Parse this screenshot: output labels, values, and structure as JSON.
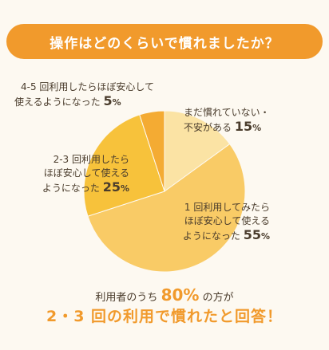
{
  "title": "操作はどのくらいで慣れましたか？",
  "chart_data": {
    "type": "pie",
    "slices": [
      {
        "label": [
          "まだ慣れていない・",
          "不安がある"
        ],
        "value": 15,
        "color": "#fbe3a4"
      },
      {
        "label": [
          "1 回利用してみたら",
          "ほぼ安心して使える",
          "ようになった"
        ],
        "value": 55,
        "color": "#f9cb66"
      },
      {
        "label": [
          "2-3 回利用したら",
          "ほぼ安心して使える",
          "ようになった"
        ],
        "value": 25,
        "color": "#f7c23b"
      },
      {
        "label": [
          "4-5 回利用したらほぼ安心して",
          "使えるようになった"
        ],
        "value": 5,
        "color": "#f4ab33"
      }
    ],
    "unit": "%"
  },
  "summary": {
    "line1_prefix": "利用者のうち",
    "line1_highlight": "80%",
    "line1_suffix": "の方が",
    "line2": "2・3 回の利用で慣れたと回答！"
  }
}
